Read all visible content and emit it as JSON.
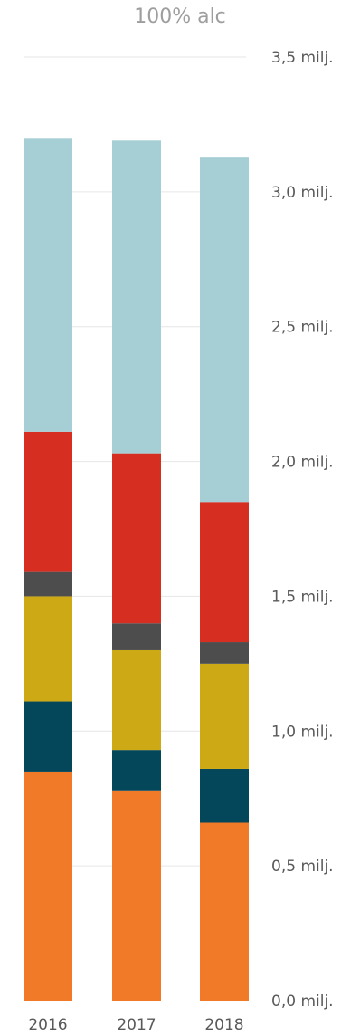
{
  "chart_data": {
    "type": "bar",
    "stacked": true,
    "title": "100% alc",
    "xlabel": "",
    "ylabel": "",
    "categories": [
      "2016",
      "2017",
      "2018"
    ],
    "ylim": [
      0,
      3.5
    ],
    "yticks": [
      {
        "value": 0.0,
        "label": "0,0 milj."
      },
      {
        "value": 0.5,
        "label": "0,5 milj."
      },
      {
        "value": 1.0,
        "label": "1,0 milj."
      },
      {
        "value": 1.5,
        "label": "1,5 milj."
      },
      {
        "value": 2.0,
        "label": "2,0 milj."
      },
      {
        "value": 2.5,
        "label": "2,5 milj."
      },
      {
        "value": 3.0,
        "label": "3,0 milj."
      },
      {
        "value": 3.5,
        "label": "3,5 milj."
      }
    ],
    "grid": true,
    "legend": "none",
    "series": [
      {
        "color": "#F07A27",
        "values": [
          0.85,
          0.78,
          0.66
        ]
      },
      {
        "color": "#04465A",
        "values": [
          0.26,
          0.15,
          0.2
        ]
      },
      {
        "color": "#CDA916",
        "values": [
          0.39,
          0.37,
          0.39
        ]
      },
      {
        "color": "#4D4D4D",
        "values": [
          0.09,
          0.1,
          0.08
        ]
      },
      {
        "color": "#D62E21",
        "values": [
          0.52,
          0.63,
          0.52
        ]
      },
      {
        "color": "#A6CFD5",
        "values": [
          1.09,
          1.16,
          1.28
        ]
      }
    ]
  }
}
